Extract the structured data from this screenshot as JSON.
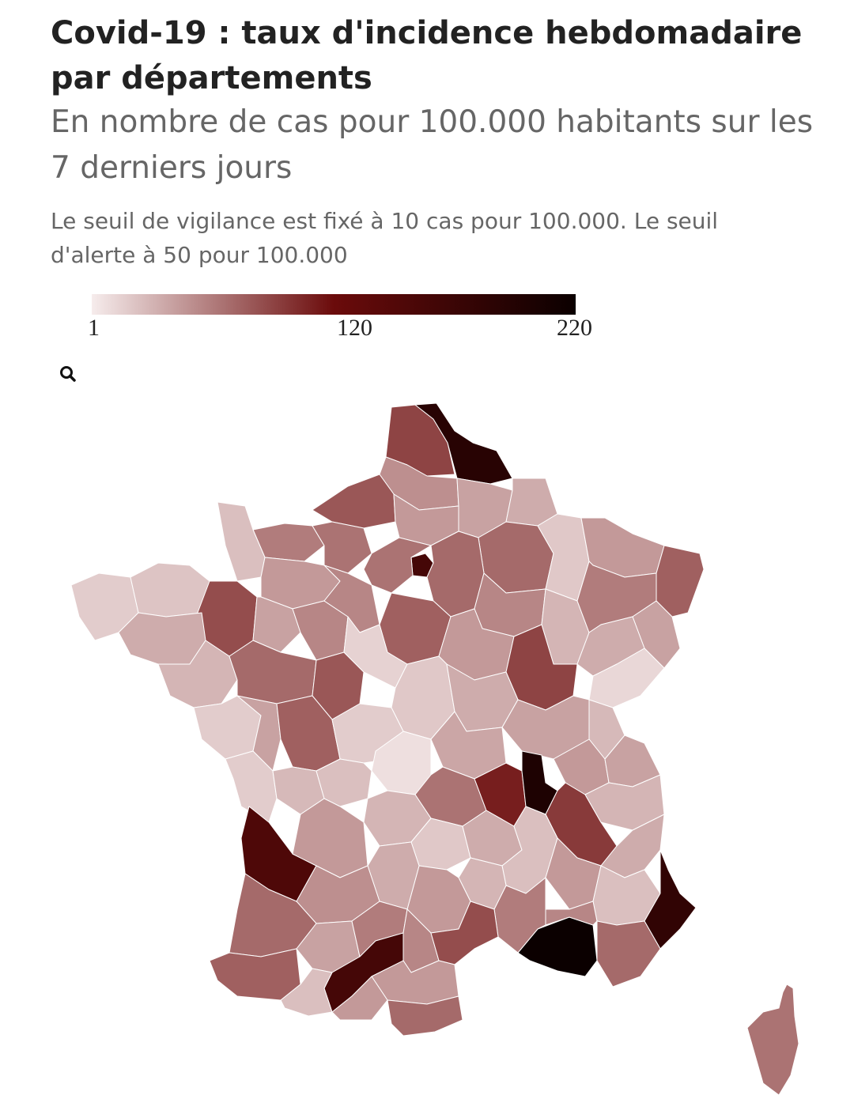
{
  "header": {
    "title": "Covid-19 : taux d'incidence hebdomadaire par départements",
    "subtitle": "En nombre de cas pour 100.000 habitants sur les 7 derniers jours",
    "note": "Le seuil de vigilance est fixé à 10 cas pour 100.000. Le seuil d'alerte à 50 pour 100.000"
  },
  "legend": {
    "min_label": "1",
    "mid_label": "120",
    "max_label": "220",
    "colors": {
      "low": "#f6ecec",
      "mid": "#6b0b0b",
      "high": "#0b0000"
    }
  },
  "search_icon": "search-icon",
  "map_data": {
    "metric": "weekly_incidence_per_100k",
    "scale": {
      "min": 1,
      "mid": 120,
      "max": 220
    },
    "regions": [
      {
        "id": "pas-de-calais",
        "value": 90
      },
      {
        "id": "nord",
        "value": 190
      },
      {
        "id": "somme",
        "value": 50
      },
      {
        "id": "aisne",
        "value": 40
      },
      {
        "id": "ardennes",
        "value": 35
      },
      {
        "id": "seine-maritime",
        "value": 80
      },
      {
        "id": "oise",
        "value": 45
      },
      {
        "id": "marne",
        "value": 70
      },
      {
        "id": "meuse",
        "value": 20
      },
      {
        "id": "moselle",
        "value": 45
      },
      {
        "id": "bas-rhin",
        "value": 75
      },
      {
        "id": "calvados",
        "value": 60
      },
      {
        "id": "manche",
        "value": 25
      },
      {
        "id": "eure",
        "value": 65
      },
      {
        "id": "paris",
        "value": 160
      },
      {
        "id": "ile-de-france-west",
        "value": 65
      },
      {
        "id": "seine-et-marne",
        "value": 70
      },
      {
        "id": "aube",
        "value": 55
      },
      {
        "id": "haute-marne",
        "value": 30
      },
      {
        "id": "vosges",
        "value": 60
      },
      {
        "id": "haut-rhin",
        "value": 40
      },
      {
        "id": "finistere",
        "value": 18
      },
      {
        "id": "cotes-darmor",
        "value": 22
      },
      {
        "id": "ille-et-vilaine",
        "value": 85
      },
      {
        "id": "morbihan",
        "value": 35
      },
      {
        "id": "orne",
        "value": 45
      },
      {
        "id": "mayenne",
        "value": 40
      },
      {
        "id": "sarthe",
        "value": 55
      },
      {
        "id": "eure-et-loir",
        "value": 55
      },
      {
        "id": "loiret",
        "value": 75
      },
      {
        "id": "yonne",
        "value": 45
      },
      {
        "id": "cote-dor",
        "value": 90
      },
      {
        "id": "haute-saone",
        "value": 35
      },
      {
        "id": "doubs",
        "value": 12
      },
      {
        "id": "loire-atlantique",
        "value": 30
      },
      {
        "id": "maine-et-loire",
        "value": 70
      },
      {
        "id": "indre-et-loire",
        "value": 80
      },
      {
        "id": "loir-et-cher",
        "value": 15
      },
      {
        "id": "cher",
        "value": 20
      },
      {
        "id": "nievre",
        "value": 35
      },
      {
        "id": "saone-et-loire",
        "value": 40
      },
      {
        "id": "jura",
        "value": 28
      },
      {
        "id": "vendee",
        "value": 18
      },
      {
        "id": "deux-sevres",
        "value": 40
      },
      {
        "id": "vienne",
        "value": 75
      },
      {
        "id": "indre",
        "value": 18
      },
      {
        "id": "allier",
        "value": 38
      },
      {
        "id": "creuse",
        "value": 8
      },
      {
        "id": "ain",
        "value": 45
      },
      {
        "id": "haute-savoie",
        "value": 40
      },
      {
        "id": "charente-maritime",
        "value": 18
      },
      {
        "id": "charente",
        "value": 28
      },
      {
        "id": "haute-vienne",
        "value": 25
      },
      {
        "id": "puy-de-dome",
        "value": 65
      },
      {
        "id": "loire",
        "value": 110
      },
      {
        "id": "rhone",
        "value": 200
      },
      {
        "id": "isere",
        "value": 95
      },
      {
        "id": "savoie",
        "value": 30
      },
      {
        "id": "gironde",
        "value": 150
      },
      {
        "id": "dordogne",
        "value": 45
      },
      {
        "id": "correze",
        "value": 30
      },
      {
        "id": "cantal",
        "value": 20
      },
      {
        "id": "haute-loire",
        "value": 35
      },
      {
        "id": "ardeche",
        "value": 25
      },
      {
        "id": "drome",
        "value": 45
      },
      {
        "id": "hautes-alpes",
        "value": 35
      },
      {
        "id": "alpes-de-haute-provence",
        "value": 25
      },
      {
        "id": "alpes-maritimes",
        "value": 180
      },
      {
        "id": "var",
        "value": 70
      },
      {
        "id": "bouches-du-rhone",
        "value": 220
      },
      {
        "id": "vaucluse",
        "value": 55
      },
      {
        "id": "gard",
        "value": 60
      },
      {
        "id": "lozere",
        "value": 30
      },
      {
        "id": "aveyron",
        "value": 45
      },
      {
        "id": "lot",
        "value": 35
      },
      {
        "id": "lot-et-garonne",
        "value": 50
      },
      {
        "id": "landes",
        "value": 70
      },
      {
        "id": "pyrenees-atlantiques",
        "value": 75
      },
      {
        "id": "gers",
        "value": 40
      },
      {
        "id": "tarn-et-garonne",
        "value": 60
      },
      {
        "id": "haute-garonne",
        "value": 160
      },
      {
        "id": "tarn",
        "value": 55
      },
      {
        "id": "herault",
        "value": 85
      },
      {
        "id": "aude",
        "value": 45
      },
      {
        "id": "ariege",
        "value": 45
      },
      {
        "id": "hautes-pyrenees",
        "value": 25
      },
      {
        "id": "pyrenees-orientales",
        "value": 70
      },
      {
        "id": "corse",
        "value": 65
      }
    ]
  }
}
